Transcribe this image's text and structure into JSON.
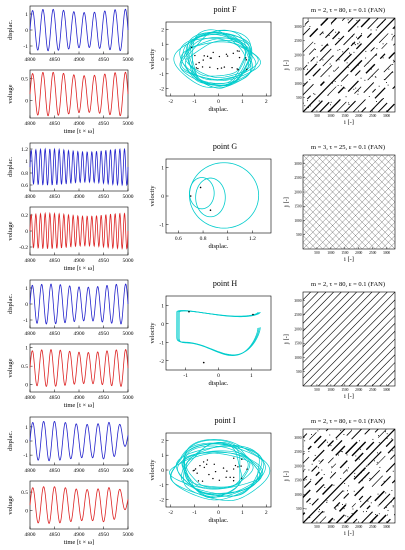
{
  "chart_data": [
    {
      "row_title": "point F",
      "rp_title": "m = 2, τ = 80, ε = 0.1 (FAN)",
      "time_series": {
        "type": "line",
        "xlabel": "time [t × ω]",
        "x_ticks": [
          4800,
          4850,
          4900,
          4950,
          5000
        ],
        "xlim": [
          4800,
          5000
        ],
        "displacement": {
          "ylabel": "displac.",
          "yticks": [
            "1",
            "0",
            "-1"
          ],
          "ylim": [
            -1.5,
            1.5
          ],
          "color": "#2222cc",
          "periods": 9.5,
          "amplitude": 1.3,
          "decay_end": false
        },
        "voltage": {
          "ylabel": "voltage",
          "yticks": [
            "0.5",
            "0"
          ],
          "ylim": [
            -0.4,
            0.7
          ],
          "color": "#dd2222",
          "periods": 9.5,
          "amplitude": 0.5,
          "decay_end": false
        }
      },
      "phase": {
        "type": "line",
        "xlabel": "displac.",
        "ylabel": "velocity",
        "x_ticks": [
          -2,
          -1,
          0,
          1,
          2
        ],
        "y_ticks": [
          -2,
          -1,
          0,
          1,
          2
        ],
        "xlim": [
          -2.2,
          2.2
        ],
        "ylim": [
          -2.5,
          2.5
        ],
        "shape": "chaotic",
        "color": "#00cccc"
      },
      "recurrence": {
        "type": "heatmap",
        "xlabel": "i [-]",
        "ylabel": "j [-]",
        "ticks": [
          500,
          1000,
          1500,
          2000,
          2500,
          3000
        ],
        "lim": [
          0,
          3300
        ],
        "pattern": "chaotic"
      }
    },
    {
      "row_title": "point G",
      "rp_title": "m = 3, τ = 25, ε = 0.1 (FAN)",
      "time_series": {
        "type": "line",
        "xlabel": "time [t × ω]",
        "x_ticks": [
          4800,
          4850,
          4900,
          4950,
          5000
        ],
        "xlim": [
          4800,
          5000
        ],
        "displacement": {
          "ylabel": "displac.",
          "yticks": [
            "1.2",
            "1",
            "0.8",
            "0.6"
          ],
          "ylim": [
            0.5,
            1.3
          ],
          "color": "#2222cc",
          "periods": 21,
          "amplitude": 0.3,
          "decay_end": false
        },
        "voltage": {
          "ylabel": "voltage",
          "yticks": [
            "0.2",
            "0",
            "-0.2"
          ],
          "ylim": [
            -0.3,
            0.3
          ],
          "color": "#dd2222",
          "periods": 21,
          "amplitude": 0.22,
          "decay_end": false
        }
      },
      "phase": {
        "type": "line",
        "xlabel": "displac.",
        "ylabel": "velocity",
        "x_ticks": [
          0.6,
          0.8,
          1,
          1.2
        ],
        "y_ticks": [
          -1,
          0,
          1
        ],
        "xlim": [
          0.5,
          1.35
        ],
        "ylim": [
          -1.3,
          1.3
        ],
        "shape": "loops",
        "color": "#00cccc"
      },
      "recurrence": {
        "type": "heatmap",
        "xlabel": "i [-]",
        "ylabel": "j [-]",
        "ticks": [
          500,
          1000,
          1500,
          2000,
          2500,
          3000
        ],
        "lim": [
          0,
          3300
        ],
        "pattern": "grid"
      }
    },
    {
      "row_title": "point H",
      "rp_title": "m = 2, τ = 80, ε = 0.1 (FAN)",
      "time_series": {
        "type": "line",
        "xlabel": "time [t × ω]",
        "x_ticks": [
          4800,
          4850,
          4900,
          4950,
          5000
        ],
        "xlim": [
          4800,
          5000
        ],
        "displacement": {
          "ylabel": "displac.",
          "yticks": [
            "1",
            "0",
            "-1"
          ],
          "ylim": [
            -1.5,
            1.5
          ],
          "color": "#2222cc",
          "periods": 10.5,
          "amplitude": 1.25,
          "decay_end": false
        },
        "voltage": {
          "ylabel": "voltage",
          "yticks": [
            "1",
            "0.5",
            "0"
          ],
          "ylim": [
            -0.2,
            1.1
          ],
          "color": "#dd2222",
          "periods": 10.5,
          "amplitude": 0.5,
          "decay_end": false
        }
      },
      "phase": {
        "type": "line",
        "xlabel": "displac.",
        "ylabel": "velocity",
        "x_ticks": [
          -1,
          0,
          1
        ],
        "y_ticks": [
          -2,
          -1,
          0,
          1
        ],
        "xlim": [
          -1.6,
          1.6
        ],
        "ylim": [
          -2.5,
          1.5
        ],
        "shape": "periodic",
        "color": "#00cccc"
      },
      "recurrence": {
        "type": "heatmap",
        "xlabel": "i [-]",
        "ylabel": "j [-]",
        "ticks": [
          500,
          1000,
          1500,
          2000,
          2500,
          3000
        ],
        "lim": [
          0,
          3300
        ],
        "pattern": "diagonal"
      }
    },
    {
      "row_title": "point I",
      "rp_title": "m = 2, τ = 80, ε = 0.1 (FAN)",
      "time_series": {
        "type": "line",
        "xlabel": "time [t × ω]",
        "x_ticks": [
          4800,
          4850,
          4900,
          4950,
          5000
        ],
        "xlim": [
          4800,
          5000
        ],
        "displacement": {
          "ylabel": "displac.",
          "yticks": [
            "1",
            "0",
            "-1"
          ],
          "ylim": [
            -1.7,
            1.7
          ],
          "color": "#2222cc",
          "periods": 9,
          "amplitude": 1.4,
          "decay_end": true
        },
        "voltage": {
          "ylabel": "voltage",
          "yticks": [
            "0.5",
            "0"
          ],
          "ylim": [
            -0.5,
            0.8
          ],
          "color": "#dd2222",
          "periods": 9,
          "amplitude": 0.5,
          "decay_end": true
        }
      },
      "phase": {
        "type": "line",
        "xlabel": "displac.",
        "ylabel": "velocity",
        "x_ticks": [
          -2,
          -1,
          0,
          1,
          2
        ],
        "y_ticks": [
          -2,
          -1,
          0,
          1,
          2
        ],
        "xlim": [
          -2.2,
          2.2
        ],
        "ylim": [
          -2.5,
          2.5
        ],
        "shape": "chaotic",
        "color": "#00cccc"
      },
      "recurrence": {
        "type": "heatmap",
        "xlabel": "i [-]",
        "ylabel": "j [-]",
        "ticks": [
          500,
          1000,
          1500,
          2000,
          2500,
          3000
        ],
        "lim": [
          0,
          3300
        ],
        "pattern": "chaotic"
      }
    }
  ]
}
